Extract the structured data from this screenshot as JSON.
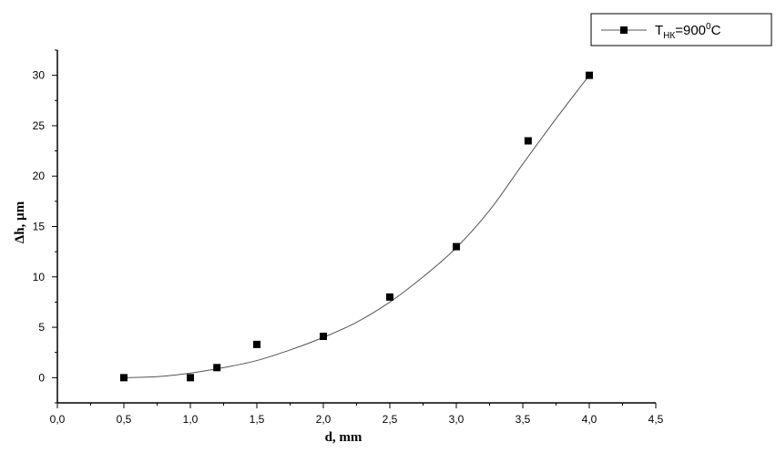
{
  "chart_data": {
    "type": "scatter",
    "title": "",
    "xlabel": "d, mm",
    "ylabel": "Δh, µm",
    "xlim": [
      0.0,
      4.5
    ],
    "ylim": [
      -2.5,
      32.5
    ],
    "x_ticks": [
      "0,0",
      "0,5",
      "1,0",
      "1,5",
      "2,0",
      "2,5",
      "3,0",
      "3,5",
      "4,0",
      "4,5"
    ],
    "y_ticks": [
      "0",
      "5",
      "10",
      "15",
      "20",
      "25",
      "30"
    ],
    "grid": false,
    "legend_position": "top-right",
    "series": [
      {
        "name_parts": {
          "main": "T",
          "sub": "НК",
          "rest1": "=900",
          "sup": "0",
          "rest2": "C"
        },
        "marker": "filled-square",
        "color": "#000000",
        "x": [
          0.5,
          1.0,
          1.2,
          1.5,
          2.0,
          2.5,
          3.0,
          3.54,
          4.0
        ],
        "y": [
          0.0,
          0.0,
          1.0,
          3.3,
          4.1,
          8.0,
          13.0,
          23.5,
          30.0
        ]
      }
    ],
    "fit_curve": {
      "kind": "polynomial",
      "color": "#555555",
      "x": [
        0.5,
        0.75,
        1.0,
        1.25,
        1.5,
        1.75,
        2.0,
        2.25,
        2.5,
        2.75,
        3.0,
        3.25,
        3.5,
        3.75,
        4.0
      ],
      "y": [
        0.0,
        0.1,
        0.45,
        1.0,
        1.7,
        2.75,
        4.0,
        5.5,
        7.5,
        10.0,
        12.9,
        16.6,
        21.2,
        25.7,
        30.0
      ]
    }
  }
}
